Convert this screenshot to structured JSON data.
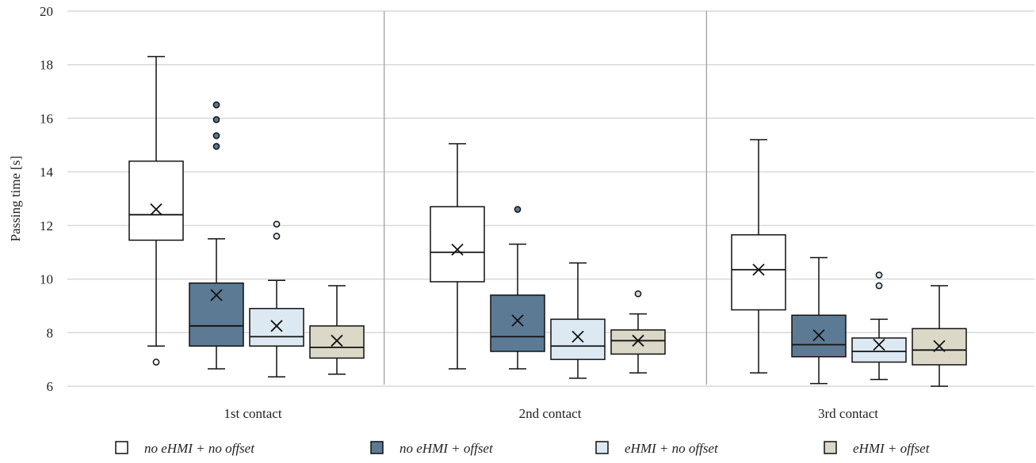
{
  "chart_data": {
    "type": "box",
    "ylabel": "Passing time [s]",
    "xlabel": "",
    "title": "",
    "ylim": [
      6,
      20
    ],
    "yticks": [
      6,
      8,
      10,
      12,
      14,
      16,
      18,
      20
    ],
    "grid": true,
    "legend_position": "bottom",
    "categories": [
      "1st contact",
      "2nd contact",
      "3rd contact"
    ],
    "series": [
      {
        "name": "no eHMI + no offset",
        "color": "#ffffff",
        "boxes": [
          {
            "whisker_low": 7.5,
            "q1": 11.45,
            "median": 12.4,
            "q3": 14.4,
            "whisker_high": 18.3,
            "mean": 12.6,
            "outliers": [
              6.9
            ]
          },
          {
            "whisker_low": 6.65,
            "q1": 9.9,
            "median": 11.0,
            "q3": 12.7,
            "whisker_high": 15.05,
            "mean": 11.1,
            "outliers": []
          },
          {
            "whisker_low": 6.5,
            "q1": 8.85,
            "median": 10.35,
            "q3": 11.65,
            "whisker_high": 15.2,
            "mean": 10.35,
            "outliers": []
          }
        ]
      },
      {
        "name": "no eHMI + offset",
        "color": "#5c7a94",
        "boxes": [
          {
            "whisker_low": 6.65,
            "q1": 7.5,
            "median": 8.25,
            "q3": 9.85,
            "whisker_high": 11.5,
            "mean": 9.4,
            "outliers": [
              14.95,
              15.35,
              15.95,
              16.5
            ]
          },
          {
            "whisker_low": 6.65,
            "q1": 7.3,
            "median": 7.85,
            "q3": 9.4,
            "whisker_high": 11.3,
            "mean": 8.45,
            "outliers": [
              12.6
            ]
          },
          {
            "whisker_low": 6.1,
            "q1": 7.1,
            "median": 7.55,
            "q3": 8.65,
            "whisker_high": 10.8,
            "mean": 7.9,
            "outliers": []
          }
        ]
      },
      {
        "name": "eHMI + no offset",
        "color": "#dde9f2",
        "boxes": [
          {
            "whisker_low": 6.35,
            "q1": 7.5,
            "median": 7.85,
            "q3": 8.9,
            "whisker_high": 9.95,
            "mean": 8.25,
            "outliers": [
              11.6,
              12.05
            ]
          },
          {
            "whisker_low": 6.3,
            "q1": 7.0,
            "median": 7.5,
            "q3": 8.5,
            "whisker_high": 10.6,
            "mean": 7.85,
            "outliers": []
          },
          {
            "whisker_low": 6.25,
            "q1": 6.9,
            "median": 7.3,
            "q3": 7.8,
            "whisker_high": 8.5,
            "mean": 7.55,
            "outliers": [
              9.75,
              10.15
            ]
          }
        ]
      },
      {
        "name": "eHMI + offset",
        "color": "#dcd8c8",
        "boxes": [
          {
            "whisker_low": 6.45,
            "q1": 7.05,
            "median": 7.45,
            "q3": 8.25,
            "whisker_high": 9.75,
            "mean": 7.7,
            "outliers": []
          },
          {
            "whisker_low": 6.5,
            "q1": 7.2,
            "median": 7.7,
            "q3": 8.1,
            "whisker_high": 8.7,
            "mean": 7.7,
            "outliers": [
              9.45
            ]
          },
          {
            "whisker_low": 6.0,
            "q1": 6.8,
            "median": 7.35,
            "q3": 8.15,
            "whisker_high": 9.75,
            "mean": 7.5,
            "outliers": []
          }
        ]
      }
    ]
  }
}
